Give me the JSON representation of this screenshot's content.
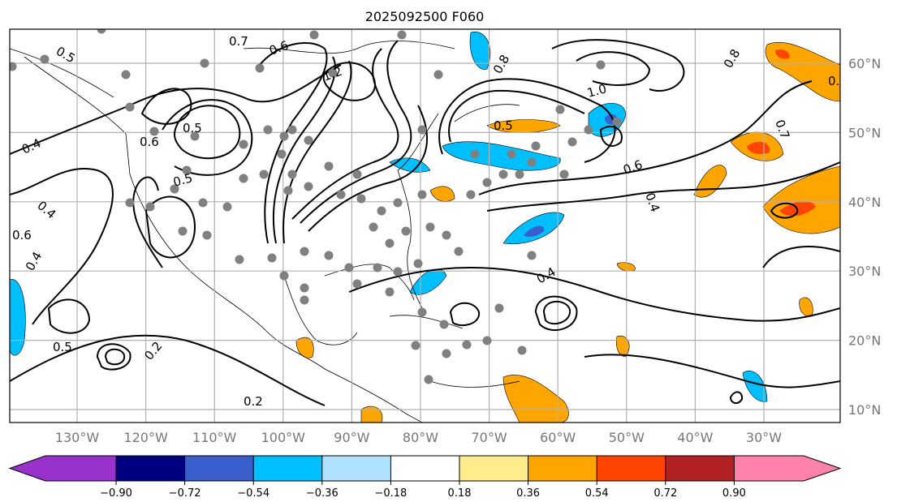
{
  "title": "2025092500 F060",
  "lon_labels": [
    "130°W",
    "120°W",
    "110°W",
    "100°W",
    "90°W",
    "80°W",
    "70°W",
    "60°W",
    "50°W",
    "40°W",
    "30°W"
  ],
  "lat_labels": [
    "60°N",
    "50°N",
    "40°N",
    "30°N",
    "20°N",
    "10°N"
  ],
  "contour_labels": [
    "0.5",
    "0.7",
    "0.6",
    "0.4",
    "0.6",
    "0.5",
    "0.4",
    "0.6",
    "0.5",
    "1.2",
    "0.8",
    "1.0",
    "0.6",
    "0.4",
    "0.7",
    "0.8",
    "0.4",
    "0.5",
    "0.2",
    "0.2",
    "0.4",
    "0.5",
    "0.4"
  ],
  "colorbar": {
    "ticks": [
      "−0.90",
      "−0.72",
      "−0.54",
      "−0.36",
      "−0.18",
      "0.18",
      "0.36",
      "0.54",
      "0.72",
      "0.90"
    ],
    "colors": [
      "#9932cc",
      "#000080",
      "#3a5fcd",
      "#00bfff",
      "#b0e2ff",
      "#ffffff",
      "#ffec8b",
      "#ffa500",
      "#ff4500",
      "#b22222",
      "#ff82ab"
    ]
  }
}
